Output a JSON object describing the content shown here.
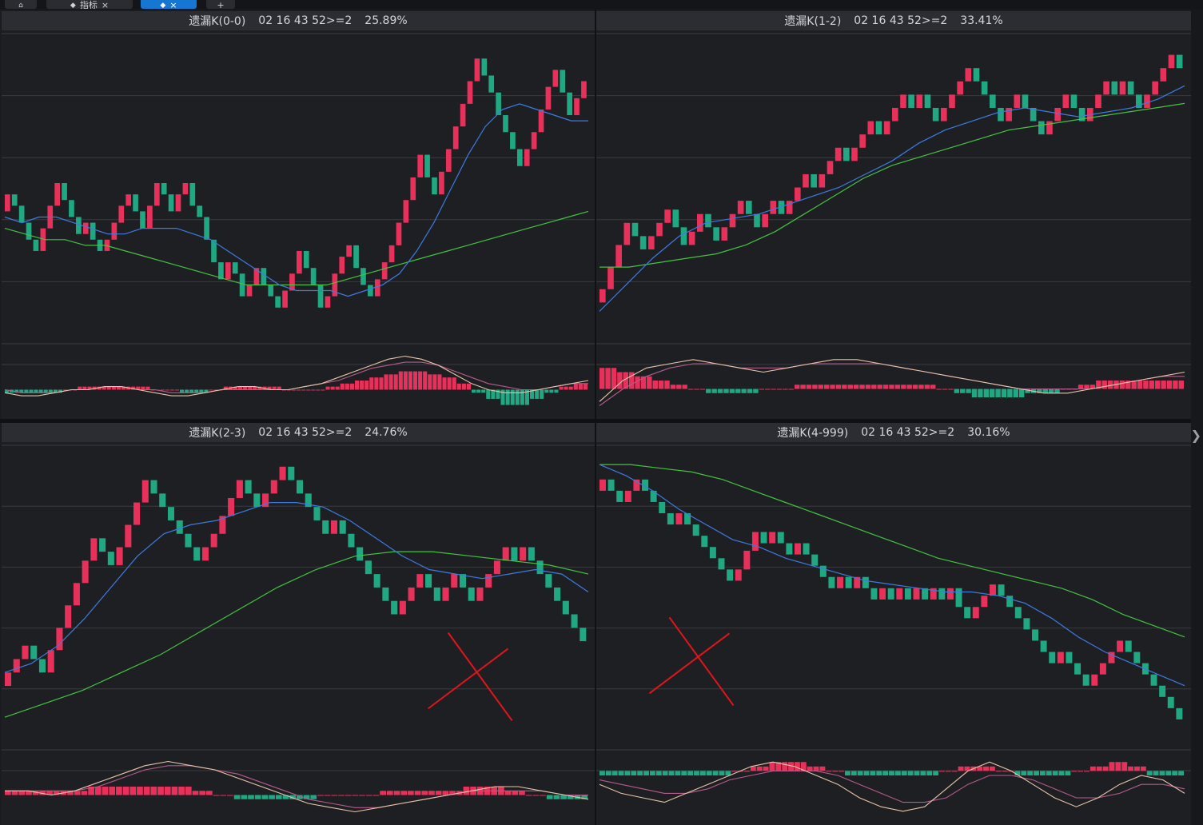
{
  "tabs": [
    {
      "icon": "home-icon",
      "label": "",
      "close": ""
    },
    {
      "icon": "diamond-icon",
      "label": "指标",
      "close": "×"
    },
    {
      "icon": "diamond-icon",
      "label": "",
      "close": "×"
    },
    {
      "icon": "plus-icon",
      "label": "+",
      "close": ""
    }
  ],
  "colors": {
    "background": "#1e1f23",
    "header": "#2c2d32",
    "grid": "#3a3b40",
    "up": "#e8315a",
    "down": "#1fa882",
    "ma_fast": "#3d7be0",
    "ma_slow": "#45c242",
    "osc_fast": "#e6c6a8",
    "osc_slow": "#b45c8c",
    "annotation": "#e0161c"
  },
  "scroll_arrow_icon": "chevron-right-icon",
  "panels": [
    {
      "header": {
        "name": "遗漏K(0-0)",
        "code": "02 16 43 52>=2",
        "pct": "25.89%"
      },
      "chart_data": {
        "type": "renko",
        "ylim": [
          0,
          100
        ],
        "bricks": [
          80,
          78,
          75,
          72,
          70,
          74,
          78,
          82,
          79,
          76,
          73,
          75,
          72,
          70,
          72,
          75,
          78,
          80,
          77,
          74,
          78,
          82,
          80,
          77,
          80,
          82,
          78,
          76,
          72,
          68,
          65,
          68,
          66,
          62,
          64,
          67,
          64,
          62,
          60,
          63,
          66,
          70,
          67,
          64,
          60,
          62,
          66,
          69,
          71,
          67,
          64,
          62,
          65,
          68,
          71,
          75,
          79,
          83,
          87,
          83,
          80,
          84,
          88,
          92,
          96,
          100,
          104,
          101,
          98,
          94,
          91,
          88,
          85,
          88,
          91,
          95,
          99,
          102,
          98,
          94,
          97,
          100
        ],
        "ma_fast": [
          76,
          75,
          76,
          76,
          75,
          74,
          73,
          73,
          74,
          74,
          74,
          73,
          72,
          70,
          68,
          66,
          64,
          63,
          63,
          63,
          62,
          63,
          64,
          66,
          70,
          75,
          81,
          87,
          92,
          95,
          96,
          95,
          94,
          93,
          93
        ],
        "ma_slow": [
          74,
          73,
          72,
          72,
          71,
          71,
          70,
          69,
          68,
          67,
          66,
          65,
          64,
          64,
          64,
          64,
          64,
          65,
          66,
          67,
          68,
          69,
          70,
          71,
          72,
          73,
          74,
          75,
          76,
          77
        ],
        "osc_bars": [
          -1,
          -1,
          -1,
          -1,
          0,
          1,
          1,
          1,
          1,
          1,
          0,
          0,
          -1,
          -1,
          0,
          1,
          1,
          1,
          1,
          0,
          0,
          0,
          1,
          2,
          3,
          4,
          5,
          6,
          6,
          5,
          4,
          2,
          -1,
          -3,
          -5,
          -5,
          -3,
          -1,
          1,
          2
        ],
        "osc_fast": [
          -1,
          -2,
          -2,
          -1,
          0,
          0,
          1,
          1,
          0,
          -1,
          -2,
          -2,
          -1,
          0,
          1,
          1,
          0,
          0,
          1,
          2,
          4,
          6,
          8,
          10,
          11,
          10,
          8,
          5,
          2,
          0,
          -1,
          -1,
          0,
          1,
          2,
          3
        ],
        "osc_slow": [
          0,
          -1,
          -1,
          -1,
          0,
          0,
          1,
          1,
          0,
          0,
          -1,
          -1,
          -1,
          0,
          0,
          0,
          0,
          0,
          1,
          2,
          3,
          5,
          7,
          8,
          9,
          9,
          8,
          6,
          4,
          2,
          1,
          0,
          0,
          1,
          2,
          2
        ],
        "osc_ylim": [
          -8,
          14
        ],
        "annotation": ""
      }
    },
    {
      "header": {
        "name": "遗漏K(1-2)",
        "code": "02 16 43 52>=2",
        "pct": "33.41%"
      },
      "chart_data": {
        "type": "renko",
        "ylim": [
          0,
          100
        ],
        "bricks": [
          45,
          50,
          55,
          60,
          57,
          54,
          57,
          60,
          63,
          59,
          55,
          58,
          62,
          59,
          56,
          59,
          62,
          65,
          62,
          59,
          62,
          65,
          62,
          65,
          68,
          71,
          68,
          71,
          74,
          77,
          74,
          77,
          80,
          83,
          80,
          83,
          86,
          89,
          86,
          89,
          86,
          83,
          86,
          89,
          92,
          95,
          92,
          89,
          86,
          83,
          86,
          89,
          86,
          83,
          80,
          83,
          86,
          89,
          86,
          83,
          86,
          89,
          92,
          89,
          92,
          89,
          86,
          89,
          92,
          95,
          98,
          95
        ],
        "ma_fast": [
          40,
          46,
          52,
          57,
          60,
          61,
          62,
          64,
          66,
          68,
          71,
          74,
          78,
          81,
          83,
          85,
          86,
          85,
          84,
          85,
          86,
          88,
          91
        ],
        "ma_slow": [
          50,
          50,
          51,
          52,
          53,
          55,
          58,
          62,
          66,
          70,
          73,
          75,
          77,
          79,
          81,
          82,
          83,
          84,
          85,
          86,
          87
        ],
        "osc_bars": [
          5,
          4,
          3,
          2,
          1,
          0,
          -1,
          -1,
          -1,
          0,
          0,
          1,
          1,
          1,
          1,
          1,
          1,
          1,
          1,
          0,
          -1,
          -2,
          -2,
          -2,
          -1,
          -1,
          0,
          1,
          2,
          2,
          2,
          2,
          2
        ],
        "osc_fast": [
          -3,
          2,
          5,
          6,
          7,
          6,
          5,
          4,
          5,
          6,
          7,
          7,
          6,
          5,
          4,
          3,
          2,
          1,
          0,
          -1,
          -1,
          0,
          1,
          2,
          3,
          4
        ],
        "osc_slow": [
          -4,
          0,
          3,
          5,
          6,
          6,
          5,
          5,
          5,
          6,
          6,
          6,
          6,
          5,
          4,
          3,
          2,
          1,
          0,
          0,
          0,
          0,
          1,
          2,
          3,
          3
        ],
        "osc_ylim": [
          -6,
          10
        ],
        "annotation": ""
      }
    },
    {
      "header": {
        "name": "遗漏K(2-3)",
        "code": "02 16 43 52>=2",
        "pct": "24.76%"
      },
      "chart_data": {
        "type": "renko",
        "ylim": [
          0,
          100
        ],
        "bricks": [
          60,
          63,
          66,
          63,
          60,
          65,
          70,
          75,
          80,
          85,
          90,
          87,
          84,
          88,
          93,
          98,
          103,
          100,
          97,
          94,
          91,
          88,
          85,
          88,
          91,
          95,
          99,
          103,
          100,
          97,
          100,
          103,
          106,
          103,
          100,
          97,
          94,
          91,
          94,
          91,
          88,
          85,
          82,
          79,
          76,
          73,
          76,
          79,
          82,
          79,
          76,
          79,
          82,
          79,
          76,
          79,
          82,
          85,
          88,
          85,
          88,
          85,
          82,
          79,
          76,
          73,
          70,
          67
        ],
        "ma_fast": [
          60,
          62,
          66,
          72,
          79,
          86,
          91,
          93,
          94,
          96,
          98,
          98,
          97,
          94,
          90,
          86,
          83,
          82,
          81,
          82,
          83,
          82,
          78
        ],
        "ma_slow": [
          50,
          53,
          56,
          60,
          64,
          69,
          74,
          79,
          83,
          86,
          87,
          87,
          86,
          85,
          84,
          82
        ],
        "osc_bars": [
          1,
          1,
          1,
          1,
          2,
          2,
          2,
          2,
          2,
          1,
          0,
          -1,
          -1,
          -1,
          -1,
          0,
          0,
          0,
          1,
          1,
          1,
          1,
          2,
          2,
          1,
          0,
          -1,
          -1
        ],
        "osc_fast": [
          1,
          1,
          0,
          1,
          3,
          5,
          7,
          8,
          7,
          6,
          4,
          2,
          0,
          -2,
          -3,
          -4,
          -3,
          -2,
          -1,
          0,
          1,
          2,
          2,
          1,
          0,
          -1
        ],
        "osc_slow": [
          1,
          1,
          1,
          1,
          2,
          4,
          6,
          7,
          7,
          6,
          5,
          3,
          1,
          -1,
          -2,
          -3,
          -3,
          -2,
          -1,
          0,
          1,
          1,
          1,
          1,
          0,
          0
        ],
        "osc_ylim": [
          -6,
          10
        ],
        "annotation": "cross"
      }
    },
    {
      "header": {
        "name": "遗漏K(4-999)",
        "code": "02 16 43 52>=2",
        "pct": "30.16%"
      },
      "chart_data": {
        "type": "renko",
        "ylim": [
          0,
          100
        ],
        "bricks": [
          100,
          97,
          94,
          97,
          100,
          97,
          94,
          91,
          88,
          91,
          88,
          85,
          82,
          79,
          76,
          73,
          76,
          81,
          86,
          83,
          86,
          83,
          80,
          83,
          80,
          77,
          74,
          71,
          74,
          71,
          74,
          71,
          68,
          71,
          68,
          71,
          68,
          71,
          68,
          71,
          68,
          71,
          66,
          63,
          66,
          69,
          72,
          69,
          66,
          63,
          60,
          57,
          54,
          51,
          54,
          51,
          48,
          45,
          48,
          51,
          54,
          57,
          54,
          51,
          48,
          45,
          42,
          39,
          36
        ],
        "ma_fast": [
          104,
          101,
          97,
          92,
          88,
          84,
          82,
          79,
          77,
          75,
          73,
          72,
          71,
          70,
          70,
          69,
          67,
          63,
          58,
          54,
          51,
          48,
          45
        ],
        "ma_slow": [
          104,
          104,
          103,
          102,
          100,
          97,
          94,
          91,
          88,
          85,
          82,
          79,
          77,
          75,
          73,
          71,
          68,
          64,
          61,
          58
        ],
        "osc_bars": [
          -1,
          -1,
          -1,
          -1,
          -1,
          -1,
          -1,
          0,
          1,
          2,
          2,
          1,
          0,
          -1,
          -1,
          -1,
          -1,
          -1,
          0,
          1,
          1,
          0,
          -1,
          -1,
          -1,
          0,
          1,
          2,
          1,
          -1,
          -1
        ],
        "osc_fast": [
          -3,
          -5,
          -6,
          -7,
          -5,
          -3,
          -1,
          1,
          2,
          1,
          -1,
          -3,
          -6,
          -8,
          -9,
          -8,
          -4,
          0,
          2,
          0,
          -3,
          -6,
          -8,
          -6,
          -3,
          -1,
          -2,
          -5
        ],
        "osc_slow": [
          -2,
          -3,
          -4,
          -5,
          -5,
          -4,
          -2,
          -1,
          0,
          0,
          0,
          -1,
          -3,
          -5,
          -7,
          -7,
          -6,
          -3,
          -1,
          -1,
          -2,
          -4,
          -6,
          -6,
          -5,
          -3,
          -3,
          -4
        ],
        "osc_ylim": [
          -11,
          4
        ],
        "annotation": "cross"
      }
    }
  ]
}
